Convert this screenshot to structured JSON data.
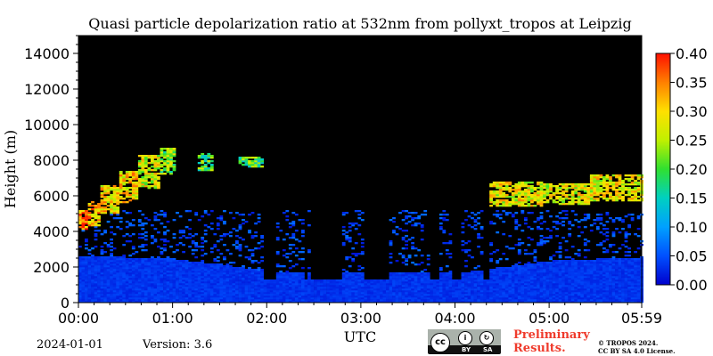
{
  "chart_data": {
    "type": "heatmap",
    "title": "Quasi particle depolarization ratio at 532nm from pollyxt_tropos at Leipzig",
    "xlabel": "UTC",
    "ylabel": "Height (m)",
    "x_ticks": [
      "00:00",
      "01:00",
      "02:00",
      "03:00",
      "04:00",
      "05:00",
      "05:59"
    ],
    "x_range_minutes": [
      0,
      359
    ],
    "y_ticks": [
      0,
      2000,
      4000,
      6000,
      8000,
      10000,
      12000,
      14000
    ],
    "ylim": [
      0,
      15000
    ],
    "colorbar": {
      "ticks": [
        "0.00",
        "0.05",
        "0.10",
        "0.15",
        "0.20",
        "0.25",
        "0.30",
        "0.35",
        "0.40"
      ],
      "range": [
        0.0,
        0.4
      ],
      "colormap": [
        "#0000cd",
        "#0050ff",
        "#00a0ff",
        "#00d0c0",
        "#30e030",
        "#c0f000",
        "#ffe000",
        "#ff8000",
        "#ff1000"
      ]
    },
    "background_color": "#000000",
    "features": {
      "aerosol_layer_top": [
        [
          0,
          2600
        ],
        [
          60,
          2400
        ],
        [
          90,
          2100
        ],
        [
          120,
          1700
        ],
        [
          240,
          1600
        ],
        [
          300,
          2300
        ],
        [
          359,
          2500
        ]
      ],
      "noise_top_m": 5200,
      "clouds": [
        {
          "t_start": 0,
          "t_end": 6,
          "base": 4100,
          "top": 5200,
          "value": 0.35
        },
        {
          "t_start": 6,
          "t_end": 14,
          "base": 4300,
          "top": 5700,
          "value": 0.32
        },
        {
          "t_start": 14,
          "t_end": 26,
          "base": 5000,
          "top": 6600,
          "value": 0.3
        },
        {
          "t_start": 26,
          "t_end": 38,
          "base": 5600,
          "top": 7400,
          "value": 0.3
        },
        {
          "t_start": 38,
          "t_end": 52,
          "base": 6400,
          "top": 8300,
          "value": 0.27
        },
        {
          "t_start": 52,
          "t_end": 62,
          "base": 7200,
          "top": 8700,
          "value": 0.22
        },
        {
          "t_start": 76,
          "t_end": 86,
          "base": 7400,
          "top": 8400,
          "value": 0.2
        },
        {
          "t_start": 102,
          "t_end": 118,
          "base": 7600,
          "top": 8200,
          "value": 0.2
        },
        {
          "t_start": 262,
          "t_end": 295,
          "base": 5400,
          "top": 6800,
          "value": 0.28
        },
        {
          "t_start": 295,
          "t_end": 325,
          "base": 5500,
          "top": 6700,
          "value": 0.27
        },
        {
          "t_start": 325,
          "t_end": 359,
          "base": 5700,
          "top": 7200,
          "value": 0.28
        }
      ],
      "signal_gaps": [
        [
          118,
          125
        ],
        [
          143,
          145
        ],
        [
          148,
          168
        ],
        [
          182,
          197
        ],
        [
          224,
          229
        ],
        [
          238,
          244
        ],
        [
          257,
          262
        ]
      ]
    }
  },
  "footer": {
    "date": "2024-01-01",
    "version": "3.6",
    "version_label": "Version:",
    "preliminary_line1": "Preliminary",
    "preliminary_line2": "Results.",
    "copyright_line1": "© TROPOS 2024.",
    "copyright_line2": "CC BY SA 4.0 License.",
    "license_badge": {
      "main": "cc",
      "by": "BY",
      "sa": "SA"
    }
  }
}
